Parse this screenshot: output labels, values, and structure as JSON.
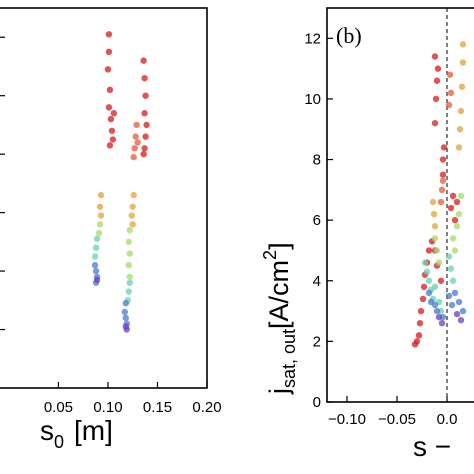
{
  "chart_data": [
    {
      "type": "scatter",
      "panel_label": "",
      "xlabel_main": "s",
      "xlabel_sub": "0",
      "xlabel_unit": "[m]",
      "ylabel": "",
      "xlim": [
        -0.01,
        0.2
      ],
      "ylim": [
        0,
        13
      ],
      "xticks": [
        0.05,
        0.1,
        0.15,
        0.2
      ],
      "xtick_labels": [
        "0.05",
        "0.10",
        "0.15",
        "0.20"
      ],
      "grid": false,
      "series": [
        {
          "color": "#d7191c",
          "points": [
            [
              0.101,
              12.1
            ],
            [
              0.101,
              11.5
            ],
            [
              0.1,
              10.9
            ],
            [
              0.102,
              10.2
            ],
            [
              0.101,
              9.6
            ],
            [
              0.103,
              9.2
            ],
            [
              0.104,
              8.8
            ],
            [
              0.105,
              8.5
            ],
            [
              0.102,
              8.3
            ],
            [
              0.106,
              9.4
            ]
          ]
        },
        {
          "color": "#d7191c",
          "points": [
            [
              0.136,
              11.2
            ],
            [
              0.137,
              10.6
            ],
            [
              0.138,
              10.0
            ],
            [
              0.137,
              9.4
            ],
            [
              0.139,
              9.0
            ],
            [
              0.138,
              8.6
            ],
            [
              0.137,
              8.2
            ],
            [
              0.136,
              8.0
            ]
          ]
        },
        {
          "color": "#e8593a",
          "points": [
            [
              0.129,
              9.0
            ],
            [
              0.128,
              8.6
            ],
            [
              0.127,
              8.2
            ],
            [
              0.126,
              7.9
            ],
            [
              0.13,
              8.4
            ]
          ]
        },
        {
          "color": "#e0a33b",
          "points": [
            [
              0.093,
              6.6
            ],
            [
              0.092,
              6.2
            ],
            [
              0.093,
              5.9
            ],
            [
              0.126,
              6.6
            ],
            [
              0.125,
              6.2
            ],
            [
              0.124,
              5.9
            ],
            [
              0.125,
              5.6
            ]
          ]
        },
        {
          "color": "#a6d96a",
          "points": [
            [
              0.092,
              5.6
            ],
            [
              0.091,
              5.3
            ],
            [
              0.122,
              5.4
            ],
            [
              0.121,
              5.0
            ],
            [
              0.122,
              4.6
            ],
            [
              0.121,
              4.2
            ],
            [
              0.122,
              3.8
            ]
          ]
        },
        {
          "color": "#66d1b0",
          "points": [
            [
              0.089,
              5.1
            ],
            [
              0.088,
              4.8
            ],
            [
              0.087,
              4.5
            ],
            [
              0.122,
              3.6
            ],
            [
              0.121,
              3.3
            ],
            [
              0.12,
              3.0
            ]
          ]
        },
        {
          "color": "#4a78d4",
          "points": [
            [
              0.087,
              4.2
            ],
            [
              0.088,
              4.0
            ],
            [
              0.089,
              3.8
            ],
            [
              0.088,
              3.6
            ],
            [
              0.118,
              2.9
            ],
            [
              0.117,
              2.6
            ],
            [
              0.118,
              2.4
            ],
            [
              0.119,
              2.2
            ]
          ]
        },
        {
          "color": "#6a3fc0",
          "points": [
            [
              0.089,
              3.7
            ],
            [
              0.118,
              2.1
            ],
            [
              0.119,
              2.0
            ]
          ]
        }
      ]
    },
    {
      "type": "scatter",
      "panel_label": "(b)",
      "xlabel_main": "s −",
      "ylabel_main": "j",
      "ylabel_sub": "sat, out",
      "ylabel_unit_open": "[A/cm",
      "ylabel_unit_sup": "2",
      "ylabel_unit_close": "]",
      "xlim": [
        -0.12,
        0.04
      ],
      "ylim": [
        0,
        13
      ],
      "xticks": [
        -0.1,
        -0.05,
        0.0
      ],
      "xtick_labels": [
        "−0.10",
        "−0.05",
        "0.0"
      ],
      "yticks": [
        0,
        2,
        4,
        6,
        8,
        10,
        12
      ],
      "ytick_labels": [
        "0",
        "2",
        "4",
        "6",
        "8",
        "10",
        "12"
      ],
      "vline_x": 0.0,
      "grid": false,
      "series": [
        {
          "color": "#d7191c",
          "points": [
            [
              -0.032,
              1.9
            ],
            [
              -0.03,
              2.0
            ],
            [
              -0.028,
              2.2
            ],
            [
              -0.027,
              2.6
            ],
            [
              -0.026,
              3.0
            ],
            [
              -0.024,
              3.4
            ],
            [
              -0.023,
              3.8
            ],
            [
              -0.022,
              4.2
            ],
            [
              -0.02,
              4.6
            ],
            [
              -0.018,
              5.0
            ],
            [
              -0.015,
              5.3
            ],
            [
              -0.012,
              5.0
            ],
            [
              -0.01,
              4.5
            ],
            [
              -0.006,
              4.0
            ],
            [
              -0.004,
              7.5
            ],
            [
              -0.004,
              8.0
            ],
            [
              -0.003,
              8.4
            ],
            [
              -0.012,
              9.2
            ],
            [
              -0.011,
              10.0
            ],
            [
              -0.01,
              10.6
            ],
            [
              -0.009,
              11.0
            ],
            [
              -0.012,
              11.4
            ],
            [
              0.004,
              6.4
            ],
            [
              0.006,
              6.8
            ],
            [
              0.008,
              6.0
            ],
            [
              0.01,
              6.6
            ]
          ]
        },
        {
          "color": "#e8593a",
          "points": [
            [
              -0.006,
              6.6
            ],
            [
              -0.005,
              7.0
            ],
            [
              -0.004,
              7.3
            ],
            [
              0.002,
              9.8
            ],
            [
              0.004,
              10.2
            ],
            [
              0.003,
              10.8
            ]
          ]
        },
        {
          "color": "#e0a33b",
          "points": [
            [
              -0.014,
              6.6
            ],
            [
              -0.013,
              6.2
            ],
            [
              -0.012,
              5.8
            ],
            [
              0.012,
              8.4
            ],
            [
              0.013,
              9.0
            ],
            [
              0.014,
              9.6
            ],
            [
              0.015,
              10.4
            ],
            [
              0.016,
              11.2
            ],
            [
              0.016,
              11.8
            ]
          ]
        },
        {
          "color": "#a6d96a",
          "points": [
            [
              -0.012,
              5.4
            ],
            [
              -0.01,
              5.0
            ],
            [
              -0.008,
              4.6
            ],
            [
              0.006,
              5.4
            ],
            [
              0.008,
              5.0
            ],
            [
              0.01,
              5.8
            ],
            [
              0.012,
              6.2
            ],
            [
              0.014,
              6.8
            ]
          ]
        },
        {
          "color": "#66d1b0",
          "points": [
            [
              -0.022,
              4.6
            ],
            [
              -0.02,
              4.3
            ],
            [
              -0.018,
              4.0
            ],
            [
              -0.016,
              3.7
            ],
            [
              -0.014,
              3.4
            ],
            [
              -0.012,
              3.8
            ],
            [
              -0.008,
              3.3
            ],
            [
              -0.006,
              3.0
            ],
            [
              0.002,
              4.8
            ],
            [
              0.004,
              4.4
            ],
            [
              0.006,
              4.0
            ]
          ]
        },
        {
          "color": "#4a78d4",
          "points": [
            [
              -0.018,
              3.6
            ],
            [
              -0.016,
              3.3
            ],
            [
              -0.012,
              3.2
            ],
            [
              -0.01,
              3.0
            ],
            [
              -0.004,
              2.8
            ],
            [
              0.002,
              3.5
            ],
            [
              0.005,
              3.2
            ],
            [
              0.008,
              3.6
            ],
            [
              0.012,
              3.3
            ],
            [
              0.016,
              3.0
            ]
          ]
        },
        {
          "color": "#6a3fc0",
          "points": [
            [
              -0.008,
              2.8
            ],
            [
              -0.005,
              2.6
            ],
            [
              0.01,
              2.9
            ],
            [
              0.014,
              2.7
            ]
          ]
        }
      ]
    }
  ]
}
